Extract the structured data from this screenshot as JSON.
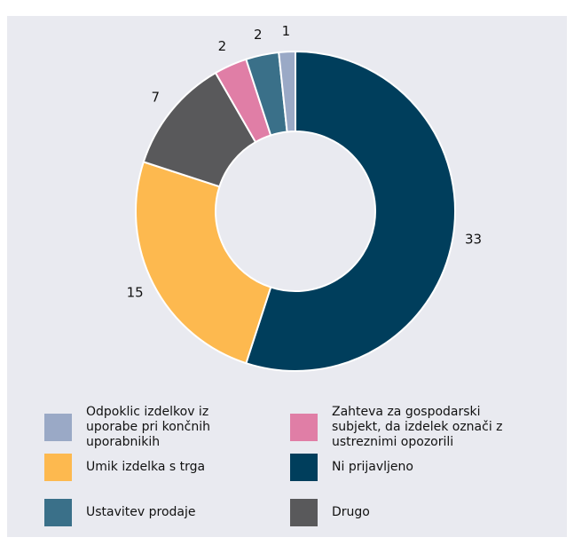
{
  "chart_data": {
    "type": "donut",
    "categories": [
      "Ni prijavljeno",
      "Umik izdelka s trga",
      "Drugo",
      "Zahteva za gospodarski subjekt, da izdelek označi z ustreznimi opozorili",
      "Ustavitev prodaje",
      "Odpoklic izdelkov iz uporabe pri končnih uporabnikih"
    ],
    "values": [
      33,
      15,
      7,
      2,
      2,
      1
    ],
    "colors": [
      "#003e5c",
      "#fdb94f",
      "#59595b",
      "#e07ea6",
      "#3a7089",
      "#9aa9c6"
    ]
  }
}
